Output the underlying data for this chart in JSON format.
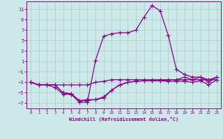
{
  "xlabel": "Windchill (Refroidissement éolien,°C)",
  "x_values": [
    0,
    1,
    2,
    3,
    4,
    5,
    6,
    7,
    8,
    9,
    10,
    11,
    12,
    13,
    14,
    15,
    16,
    17,
    18,
    19,
    20,
    21,
    22,
    23
  ],
  "series": [
    {
      "y": [
        -3,
        -3.5,
        -3.5,
        -3.5,
        -3.5,
        -3.5,
        -3.5,
        -3.5,
        -3.0,
        -2.8,
        -2.5,
        -2.5,
        -2.5,
        -2.5,
        -2.5,
        -2.5,
        -2.5,
        -2.5,
        -2.5,
        -2.5,
        -2.5,
        -2.5,
        -2.5,
        -2.5
      ]
    },
    {
      "y": [
        -3,
        -3.5,
        -3.5,
        -3.5,
        -5.0,
        -5.2,
        -6.5,
        -6.5,
        -6.3,
        -6.0,
        -4.5,
        -3.5,
        -3.0,
        -2.8,
        -2.7,
        -2.7,
        -2.7,
        -2.8,
        -2.8,
        -2.8,
        -3.0,
        -2.7,
        -3.5,
        -2.5
      ]
    },
    {
      "y": [
        -3,
        -3.5,
        -3.5,
        -4.0,
        -5.3,
        -5.3,
        -6.8,
        -6.8,
        1.2,
        5.8,
        6.3,
        6.5,
        6.5,
        7.0,
        9.5,
        11.7,
        10.7,
        6.0,
        -0.5,
        -1.5,
        -2.0,
        -2.0,
        -3.0,
        -2.0
      ]
    },
    {
      "y": [
        -3,
        -3.5,
        -3.5,
        -3.5,
        -5.0,
        -5.2,
        -6.5,
        -6.3,
        -6.3,
        -5.8,
        -4.5,
        -3.5,
        -3.0,
        -2.8,
        -2.7,
        -2.7,
        -2.7,
        -2.5,
        -2.5,
        -2.0,
        -2.5,
        -2.0,
        -2.5,
        -2.0
      ]
    }
  ],
  "ylim": [
    -8,
    12.5
  ],
  "xlim": [
    -0.5,
    23.5
  ],
  "yticks": [
    -7,
    -5,
    -3,
    -1,
    1,
    3,
    5,
    7,
    9,
    11
  ],
  "xticks": [
    0,
    1,
    2,
    3,
    4,
    5,
    6,
    7,
    8,
    9,
    10,
    11,
    12,
    13,
    14,
    15,
    16,
    17,
    18,
    19,
    20,
    21,
    22,
    23
  ],
  "bg_color": "#cce8e8",
  "grid_color": "#aacccc",
  "line_color": "#880088",
  "marker": "+",
  "markersize": 4,
  "linewidth": 0.9
}
